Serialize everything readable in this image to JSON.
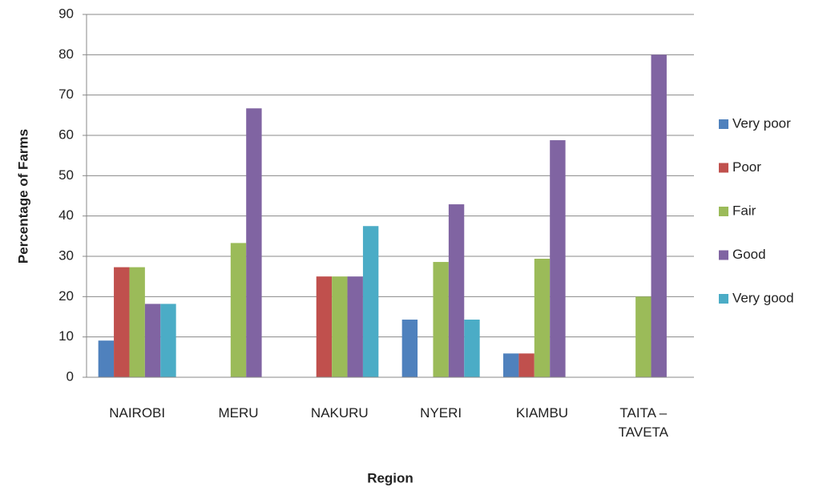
{
  "chart_data": {
    "type": "bar",
    "y_label": "Percentage of Farms",
    "x_label": "Region",
    "categories": [
      "NAIROBI",
      "MERU",
      "NAKURU",
      "NYERI",
      "KIAMBU",
      "TAITA – TAVETA"
    ],
    "series": [
      {
        "name": "Very poor",
        "color": "#4f81bd",
        "values": [
          9.1,
          0,
          0,
          14.3,
          5.9,
          0
        ]
      },
      {
        "name": "Poor",
        "color": "#c0504d",
        "values": [
          27.3,
          0,
          25,
          0,
          5.9,
          0
        ]
      },
      {
        "name": "Fair",
        "color": "#9bbb59",
        "values": [
          27.3,
          33.3,
          25,
          28.6,
          29.4,
          20
        ]
      },
      {
        "name": "Good",
        "color": "#8064a2",
        "values": [
          18.2,
          66.7,
          25,
          42.9,
          58.8,
          80
        ]
      },
      {
        "name": "Very good",
        "color": "#4bacc6",
        "values": [
          18.2,
          0,
          37.5,
          14.3,
          0,
          0
        ]
      }
    ],
    "ylim": [
      0,
      90
    ],
    "yticks": [
      0,
      10,
      20,
      30,
      40,
      50,
      60,
      70,
      80,
      90
    ],
    "grid": true,
    "legend": "right"
  }
}
